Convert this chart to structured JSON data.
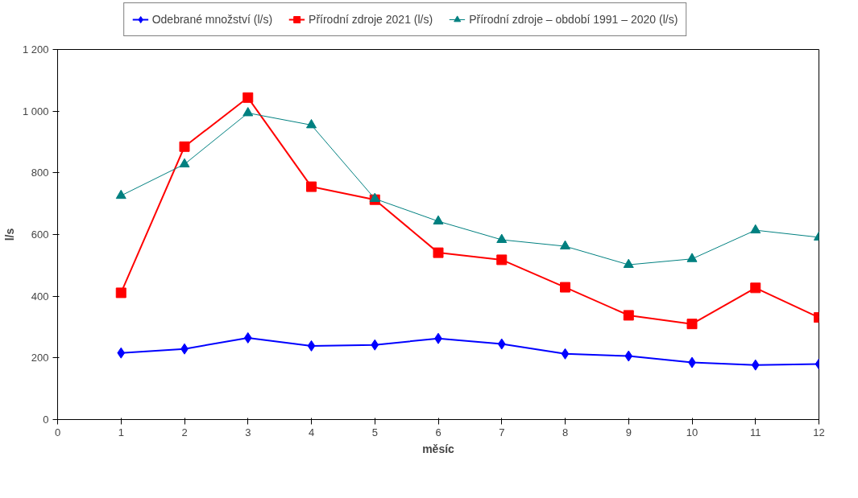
{
  "chart_data": {
    "type": "line",
    "xlabel": "měsíc",
    "ylabel": "l/s",
    "x": [
      1,
      2,
      3,
      4,
      5,
      6,
      7,
      8,
      9,
      10,
      11,
      12
    ],
    "xlim": [
      0,
      12
    ],
    "xticks": [
      0,
      1,
      2,
      3,
      4,
      5,
      6,
      7,
      8,
      9,
      10,
      11,
      12
    ],
    "ylim": [
      0,
      1200
    ],
    "yticks": [
      0,
      200,
      400,
      600,
      800,
      {
        "value": 1000,
        "label": "1 000"
      },
      {
        "value": 1200,
        "label": "1 200"
      }
    ],
    "grid": false,
    "legend": "top",
    "line_style": "solid",
    "series": [
      {
        "name": "Odebrané množství (l/s)",
        "color": "#0000ff",
        "marker": "diamond",
        "values": [
          216,
          229,
          265,
          239,
          242,
          263,
          245,
          213,
          206,
          185,
          177,
          180
        ]
      },
      {
        "name": "Přírodní zdroje 2021 (l/s)",
        "color": "#ff0000",
        "marker": "square",
        "values": [
          411,
          885,
          1044,
          755,
          713,
          541,
          518,
          429,
          338,
          310,
          427,
          331
        ]
      },
      {
        "name": "Přírodní zdroje – období 1991 – 2020 (l/s)",
        "color": "#008080",
        "marker": "triangle",
        "values": [
          726,
          828,
          994,
          955,
          716,
          643,
          583,
          562,
          502,
          521,
          614,
          591
        ]
      }
    ]
  }
}
